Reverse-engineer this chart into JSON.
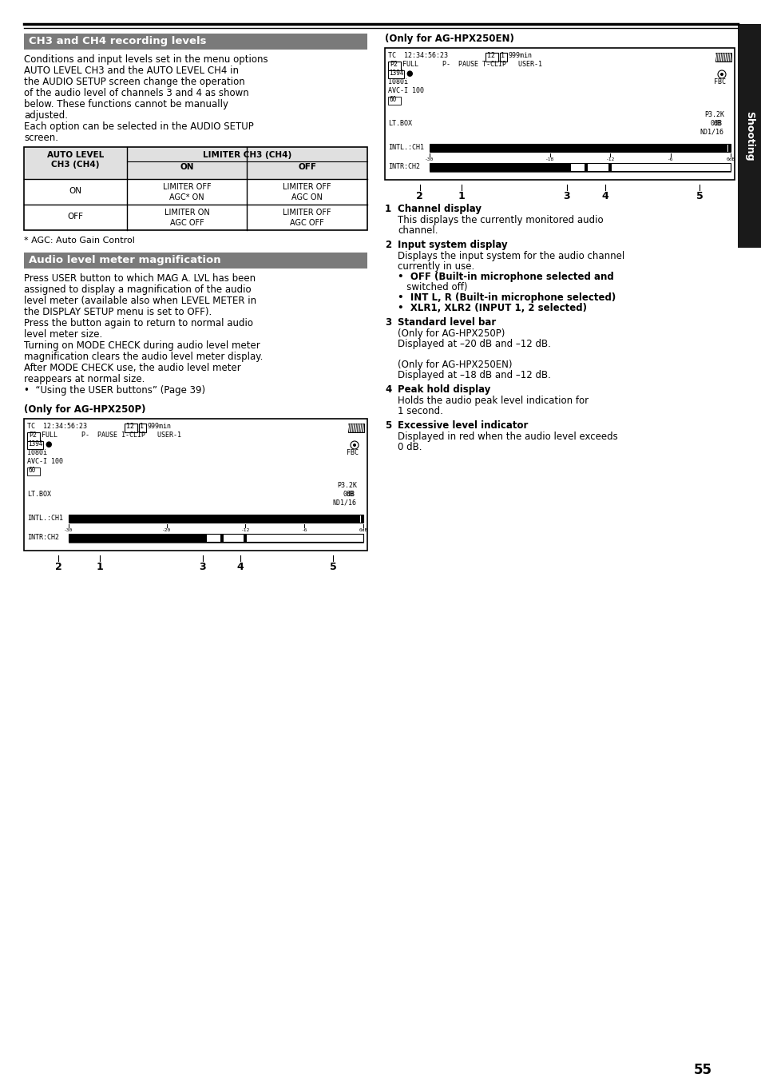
{
  "page_number": "55",
  "bg_color": "#ffffff",
  "section1_title": "CH3 and CH4 recording levels",
  "section1_body": [
    "Conditions and input levels set in the menu options",
    "AUTO LEVEL CH3 and the AUTO LEVEL CH4 in",
    "the AUDIO SETUP screen change the operation",
    "of the audio level of channels 3 and 4 as shown",
    "below. These functions cannot be manually",
    "adjusted.",
    "Each option can be selected in the AUDIO SETUP",
    "screen."
  ],
  "table_footnote": "* AGC: Auto Gain Control",
  "section2_title": "Audio level meter magnification",
  "section2_body": [
    "Press USER button to which MAG A. LVL has been",
    "assigned to display a magnification of the audio",
    "level meter (available also when LEVEL METER in",
    "the DISPLAY SETUP menu is set to OFF).",
    "Press the button again to return to normal audio",
    "level meter size.",
    "Turning on MODE CHECK during audio level meter",
    "magnification clears the audio level meter display.",
    "After MODE CHECK use, the audio level meter",
    "reappears at normal size.",
    "•  “Using the USER buttons” (Page 39)"
  ],
  "sub_label_p250p": "(Only for AG-HPX250P)",
  "sub_label_p250en": "(Only for AG-HPX250EN)",
  "desc_items": [
    {
      "num": "1",
      "title": "Channel display",
      "body": [
        "This displays the currently monitored audio",
        "channel."
      ]
    },
    {
      "num": "2",
      "title": "Input system display",
      "body": [
        "Displays the input system for the audio channel",
        "currently in use.",
        "•  OFF (Built-in microphone selected and",
        "   switched off)",
        "•  INT L, R (Built-in microphone selected)",
        "•  XLR1, XLR2 (INPUT 1, 2 selected)"
      ]
    },
    {
      "num": "3",
      "title": "Standard level bar",
      "body": [
        "(Only for AG-HPX250P)",
        "Displayed at –20 dB and –12 dB.",
        "",
        "(Only for AG-HPX250EN)",
        "Displayed at –18 dB and –12 dB."
      ]
    },
    {
      "num": "4",
      "title": "Peak hold display",
      "body": [
        "Holds the audio peak level indication for",
        "1 second."
      ]
    },
    {
      "num": "5",
      "title": "Excessive level indicator",
      "body": [
        "Displayed in red when the audio level exceeds",
        "0 dB."
      ]
    }
  ]
}
